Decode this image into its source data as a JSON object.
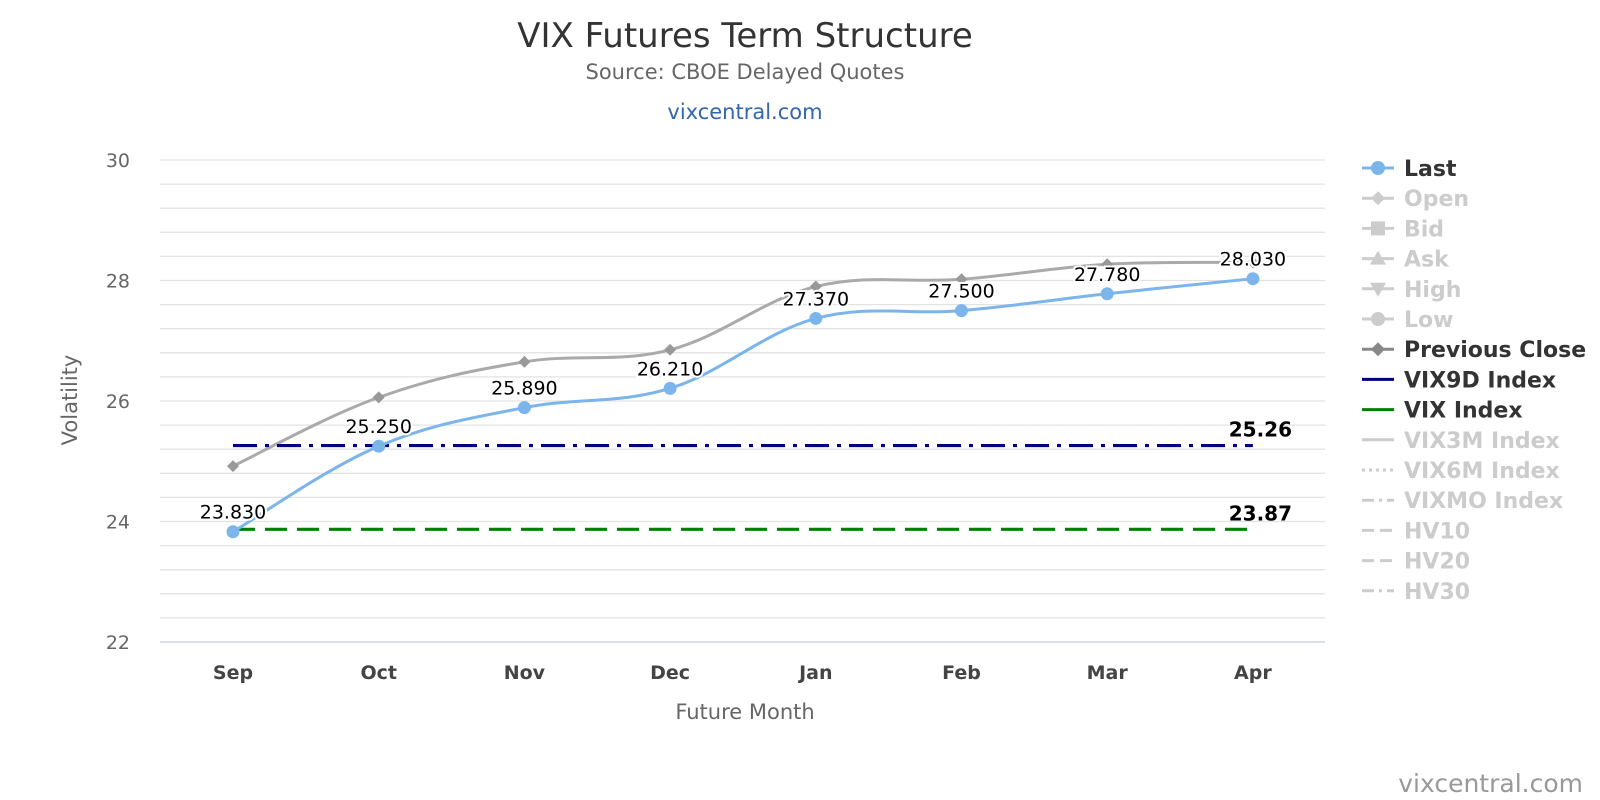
{
  "header": {
    "title": "VIX Futures Term Structure",
    "subtitle": "Source: CBOE Delayed Quotes",
    "link": "vixcentral.com"
  },
  "credit": "vixcentral.com",
  "chart_data": {
    "type": "line",
    "title": "VIX Futures Term Structure",
    "subtitle": "Source: CBOE Delayed Quotes",
    "xlabel": "Future Month",
    "ylabel": "Volatility",
    "categories": [
      "Sep",
      "Oct",
      "Nov",
      "Dec",
      "Jan",
      "Feb",
      "Mar",
      "Apr"
    ],
    "ylim": [
      22,
      30
    ],
    "yticks": [
      "22",
      "24",
      "26",
      "28",
      "30"
    ],
    "grid": true,
    "legend_position": "right",
    "series": [
      {
        "name": "Last",
        "values": [
          23.83,
          25.25,
          25.89,
          26.21,
          27.37,
          27.5,
          27.78,
          28.03
        ],
        "labels": [
          "23.830",
          "25.250",
          "25.890",
          "26.210",
          "27.370",
          "27.500",
          "27.780",
          "28.030"
        ],
        "color": "#7cb5ec",
        "marker": "circle",
        "visible": true
      },
      {
        "name": "Previous Close",
        "values": [
          24.92,
          26.06,
          26.65,
          26.85,
          27.9,
          28.02,
          28.27,
          28.3
        ],
        "color": "#aaaaaa",
        "marker": "diamond",
        "visible": true
      },
      {
        "name": "VIX9D Index",
        "value": 25.26,
        "label": "25.26",
        "color": "#000080",
        "dash": "dashdot",
        "visible": true
      },
      {
        "name": "VIX Index",
        "value": 23.87,
        "label": "23.87",
        "color": "#008000",
        "dash": "dash",
        "visible": true
      }
    ],
    "legend": [
      {
        "name": "Last",
        "symbol": "circle",
        "color": "#7cb5ec",
        "line": "solid",
        "active": true
      },
      {
        "name": "Open",
        "symbol": "diamond",
        "color": "#cccccc",
        "line": "solid",
        "active": false
      },
      {
        "name": "Bid",
        "symbol": "square",
        "color": "#cccccc",
        "line": "solid",
        "active": false
      },
      {
        "name": "Ask",
        "symbol": "triangle",
        "color": "#cccccc",
        "line": "solid",
        "active": false
      },
      {
        "name": "High",
        "symbol": "triangle-down",
        "color": "#cccccc",
        "line": "solid",
        "active": false
      },
      {
        "name": "Low",
        "symbol": "circle",
        "color": "#cccccc",
        "line": "solid",
        "active": false
      },
      {
        "name": "Previous Close",
        "symbol": "diamond",
        "color": "#888888",
        "line": "solid",
        "active": true
      },
      {
        "name": "VIX9D Index",
        "symbol": "none",
        "color": "#000080",
        "line": "solid",
        "active": true
      },
      {
        "name": "VIX Index",
        "symbol": "none",
        "color": "#008000",
        "line": "solid",
        "active": true
      },
      {
        "name": "VIX3M Index",
        "symbol": "none",
        "color": "#cccccc",
        "line": "solid",
        "active": false
      },
      {
        "name": "VIX6M Index",
        "symbol": "none",
        "color": "#cccccc",
        "line": "dot",
        "active": false
      },
      {
        "name": "VIXMO Index",
        "symbol": "none",
        "color": "#cccccc",
        "line": "dashdot",
        "active": false
      },
      {
        "name": "HV10",
        "symbol": "none",
        "color": "#cccccc",
        "line": "dash",
        "active": false
      },
      {
        "name": "HV20",
        "symbol": "none",
        "color": "#cccccc",
        "line": "dash",
        "active": false
      },
      {
        "name": "HV30",
        "symbol": "none",
        "color": "#cccccc",
        "line": "dashdot",
        "active": false
      }
    ]
  }
}
